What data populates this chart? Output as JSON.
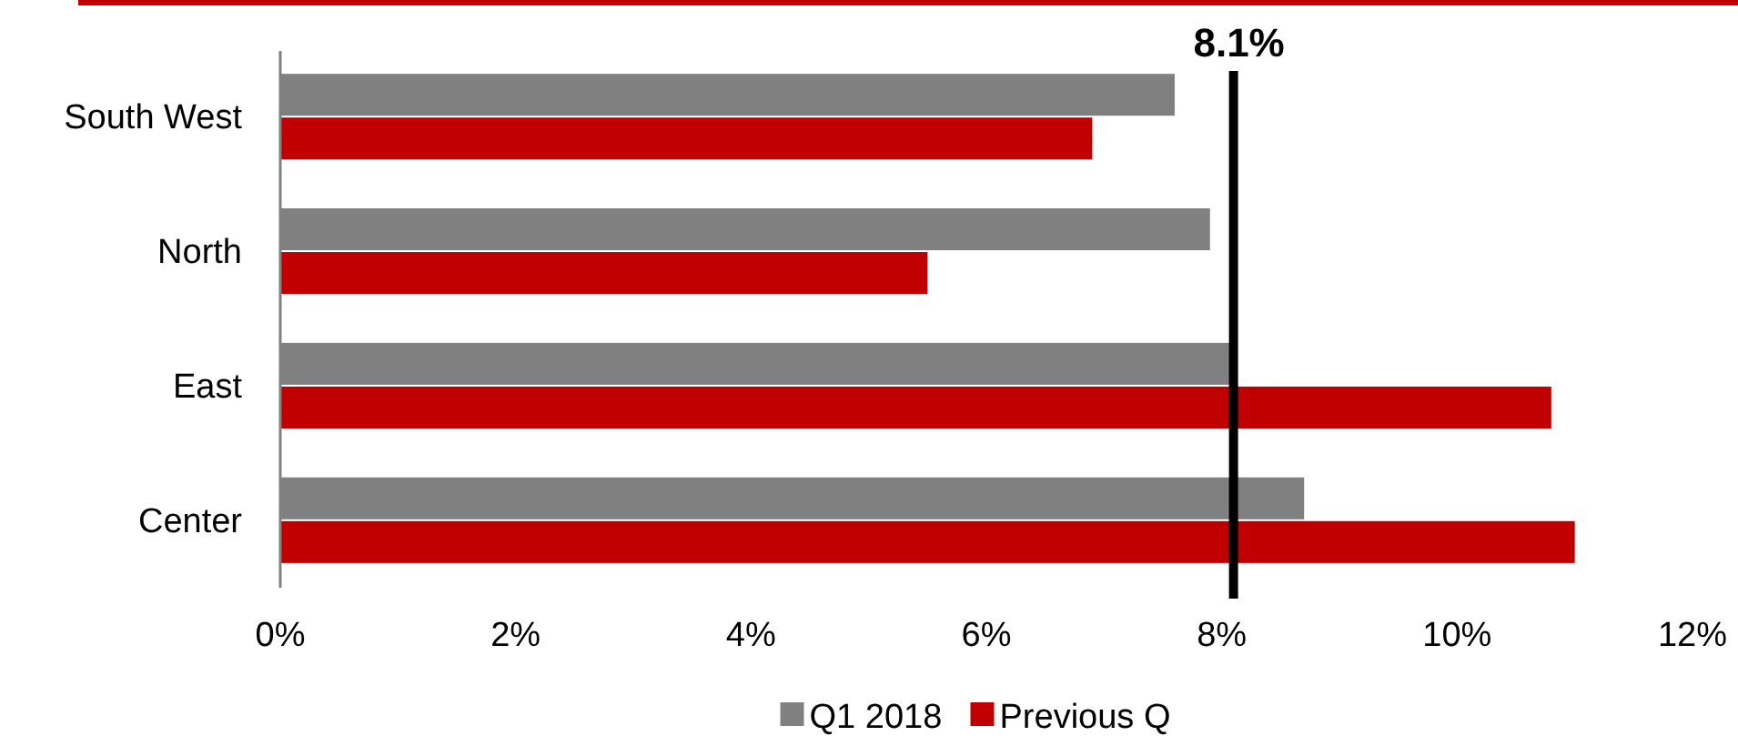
{
  "chart_data": {
    "type": "bar",
    "orientation": "horizontal",
    "categories": [
      "South West",
      "North",
      "East",
      "Center"
    ],
    "series": [
      {
        "name": "Q1 2018",
        "color": "#808080",
        "values": [
          7.6,
          7.9,
          8.1,
          8.7
        ]
      },
      {
        "name": "Previous Q",
        "color": "#c00000",
        "values": [
          6.9,
          5.5,
          10.8,
          11.0
        ]
      }
    ],
    "xlim": [
      0,
      12
    ],
    "xticks": [
      {
        "value": 0,
        "label": "0%"
      },
      {
        "value": 2,
        "label": "2%"
      },
      {
        "value": 4,
        "label": "4%"
      },
      {
        "value": 6,
        "label": "6%"
      },
      {
        "value": 8,
        "label": "8%"
      },
      {
        "value": 10,
        "label": "10%"
      },
      {
        "value": 12,
        "label": "12%"
      }
    ],
    "ref_lines": [
      {
        "axis": "x",
        "value": 8.1,
        "label": "8.1%",
        "color": "#000000"
      }
    ],
    "grid": false,
    "legend": "bottom"
  }
}
